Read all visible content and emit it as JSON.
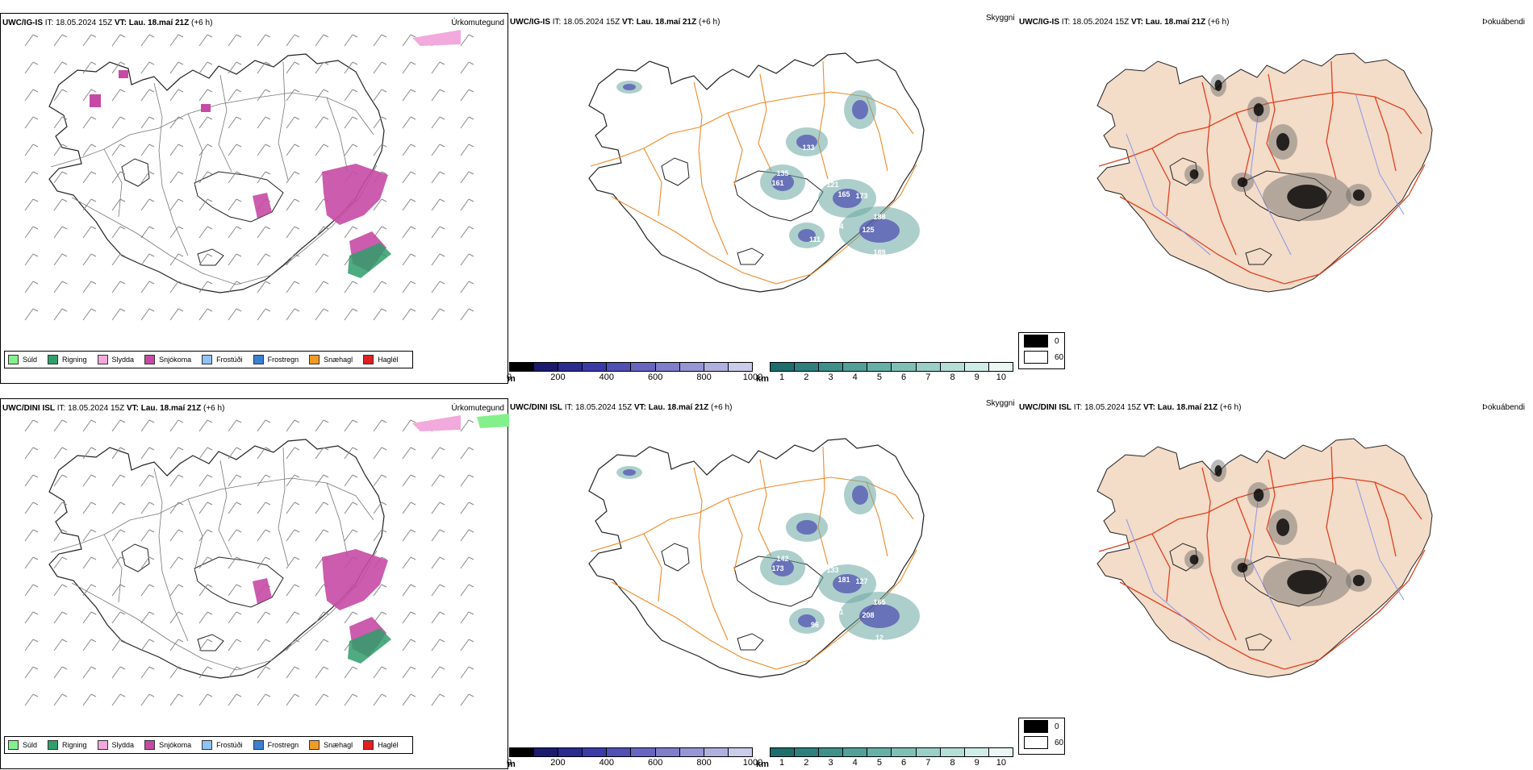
{
  "colors": {
    "land_outline": "#222222",
    "road_orange": "#ee8a2a",
    "road_red": "#e04020",
    "river_blue": "#7f8ff0",
    "land_tan": "#f3dcc8",
    "snow_magenta": "#c64aa5",
    "rain_green": "#2f9e6a",
    "sleet_pink": "#f2a9dc",
    "drizzle_green": "#84f08c"
  },
  "rows": [
    {
      "precip": {
        "model": "UWC/IG-IS",
        "it_label": "IT:",
        "it": "18.05.2024 15Z",
        "vt_label": "VT:",
        "vt": "Lau. 18.maí 21Z",
        "offset": "(+6 h)",
        "title": "Úrkomutegund"
      },
      "vis": {
        "model": "UWC/IG-IS",
        "it_label": "IT:",
        "it": "18.05.2024 15Z",
        "vt_label": "VT:",
        "vt": "Lau. 18.maí 21Z",
        "offset": "(+6 h)",
        "title": "Skyggni"
      },
      "fog": {
        "model": "UWC/IG-IS",
        "it_label": "IT:",
        "it": "18.05.2024 15Z",
        "vt_label": "VT:",
        "vt": "Lau. 18.maí 21Z",
        "offset": "(+6 h)",
        "title": "Þokuábendi"
      },
      "vis_values": [
        "135",
        "161",
        "121",
        "165",
        "173",
        "188",
        "125",
        "174",
        "111",
        "189",
        "133",
        "14"
      ],
      "top_pink": true,
      "top_green": false
    },
    {
      "precip": {
        "model": "UWC/DINI ISL",
        "it_label": "IT:",
        "it": "18.05.2024 15Z",
        "vt_label": "VT:",
        "vt": "Lau. 18.maí 21Z",
        "offset": "(+6 h)",
        "title": "Úrkomutegund"
      },
      "vis": {
        "model": "UWC/DINI ISL",
        "it_label": "IT:",
        "it": "18.05.2024 15Z",
        "vt_label": "VT:",
        "vt": "Lau. 18.maí 21Z",
        "offset": "(+6 h)",
        "title": "Skyggni"
      },
      "fog": {
        "model": "UWC/DINI ISL",
        "it_label": "IT:",
        "it": "18.05.2024 15Z",
        "vt_label": "VT:",
        "vt": "Lau. 18.maí 21Z",
        "offset": "(+6 h)",
        "title": "Þokuábendi"
      },
      "vis_values": [
        "142",
        "173",
        "133",
        "181",
        "127",
        "165",
        "208",
        "121",
        "96",
        "12"
      ],
      "top_pink": true,
      "top_green": true
    }
  ],
  "precip_legend": [
    {
      "label": "Súld",
      "color": "#84f08c"
    },
    {
      "label": "Rigning",
      "color": "#2f9e6a"
    },
    {
      "label": "Slydda",
      "color": "#f2a9dc"
    },
    {
      "label": "Snjókoma",
      "color": "#c64aa5"
    },
    {
      "label": "Frostúði",
      "color": "#8fc3f5"
    },
    {
      "label": "Frostregn",
      "color": "#3a7fd0"
    },
    {
      "label": "Snæhagl",
      "color": "#f09a28"
    },
    {
      "label": "Haglél",
      "color": "#e02020"
    }
  ],
  "ceiling_scale": {
    "unit": "m",
    "ticks": [
      "0",
      "200",
      "400",
      "600",
      "800",
      "1000"
    ],
    "colors": [
      "#000000",
      "#1a1a6e",
      "#2b2b8f",
      "#3b3ba8",
      "#5050b5",
      "#6666c0",
      "#7e7ecb",
      "#9696d6",
      "#b0b0e0",
      "#cbcbea"
    ]
  },
  "visibility_scale": {
    "unit": "km",
    "ticks": [
      "1",
      "2",
      "3",
      "4",
      "5",
      "6",
      "7",
      "8",
      "9",
      "10"
    ],
    "colors": [
      "#1f6e6e",
      "#2e7f7c",
      "#3f8f8a",
      "#52a098",
      "#67b0a7",
      "#7fc0b6",
      "#99cfc6",
      "#b4ded6",
      "#d0ece6",
      "#ebf7f4"
    ]
  },
  "fog_legend": [
    {
      "label": "0",
      "color": "#000000"
    },
    {
      "label": "60",
      "color": "#ffffff"
    }
  ]
}
